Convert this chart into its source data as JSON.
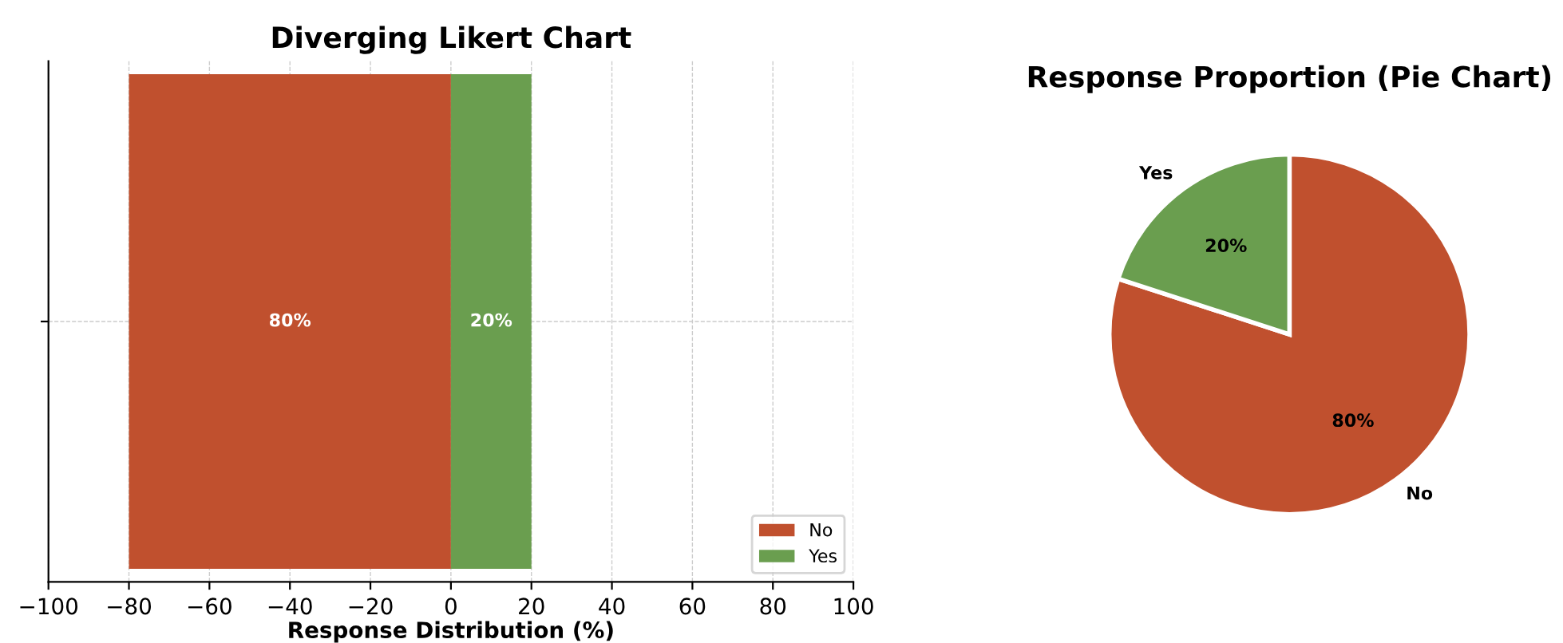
{
  "chart_data": [
    {
      "type": "bar",
      "title": "Diverging Likert Chart",
      "xlabel": "Response Distribution (%)",
      "orientation": "horizontal",
      "categories": [
        null
      ],
      "series": [
        {
          "name": "No",
          "color": "#c0502e",
          "base": [
            -80
          ],
          "values": [
            80
          ],
          "value_labels": [
            "80%"
          ]
        },
        {
          "name": "Yes",
          "color": "#6a9e4f",
          "base": [
            0
          ],
          "values": [
            20
          ],
          "value_labels": [
            "20%"
          ]
        }
      ],
      "xlim": [
        -100,
        100
      ],
      "xticks": [
        {
          "value": -100,
          "label": "−100"
        },
        {
          "value": -80,
          "label": "−80"
        },
        {
          "value": -60,
          "label": "−60"
        },
        {
          "value": -40,
          "label": "−40"
        },
        {
          "value": -20,
          "label": "−20"
        },
        0,
        20,
        40,
        60,
        80,
        100
      ],
      "grid": true,
      "legend": "bottom right"
    },
    {
      "type": "pie",
      "title": "Response Proportion (Pie Chart)",
      "categories": [
        "No",
        "Yes"
      ],
      "values": [
        80,
        20
      ],
      "colors": [
        "#c0502e",
        "#6a9e4f"
      ],
      "value_labels": [
        "80%",
        "20%"
      ]
    }
  ]
}
